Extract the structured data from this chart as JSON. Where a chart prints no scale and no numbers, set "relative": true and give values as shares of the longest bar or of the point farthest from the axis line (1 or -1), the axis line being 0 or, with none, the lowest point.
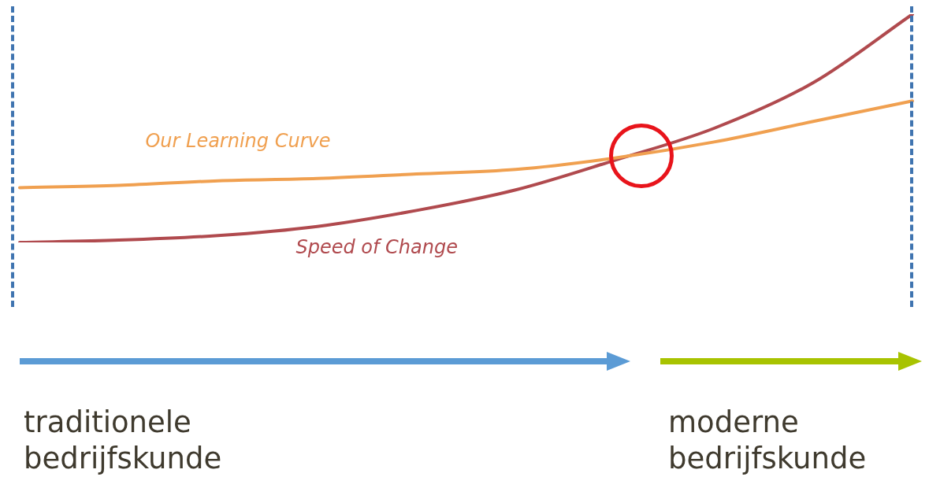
{
  "chart_data": {
    "type": "line",
    "relative": true,
    "categories": [
      null,
      null,
      null,
      null,
      null,
      null,
      null,
      null,
      null,
      null
    ],
    "series": [
      {
        "name": "Our Learning Curve",
        "color": "#f0a050",
        "values": [
          0.24,
          0.25,
          0.27,
          0.28,
          0.3,
          0.32,
          0.37,
          0.44,
          0.53,
          0.62
        ]
      },
      {
        "name": "Speed of Change",
        "color": "#b04a4e",
        "values": [
          0,
          0.01,
          0.03,
          0.07,
          0.14,
          0.23,
          0.36,
          0.5,
          0.7,
          1
        ]
      }
    ],
    "annotations": [
      "traditionele bedrijfskunde",
      "moderne bedrijfskunde"
    ],
    "legend": false,
    "marker": "none"
  }
}
